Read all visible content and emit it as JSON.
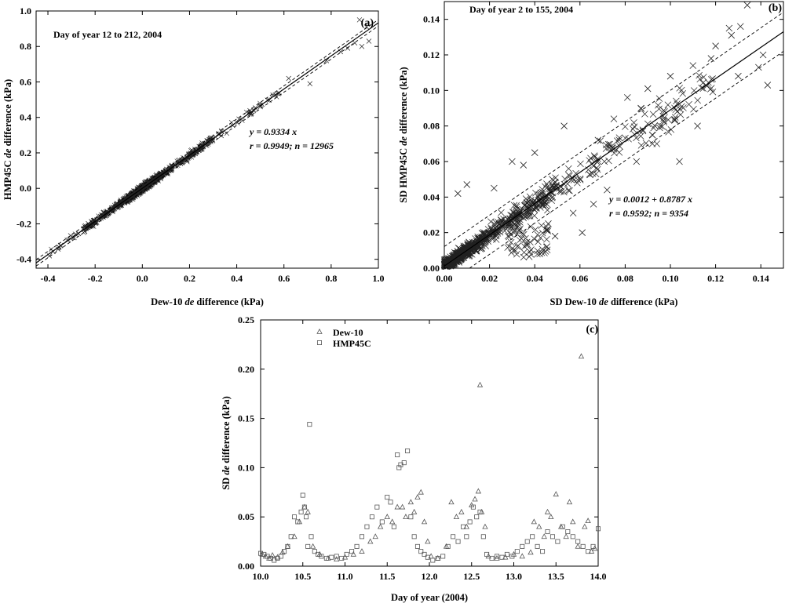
{
  "chart_data": [
    {
      "id": "a",
      "type": "scatter",
      "panel_label": "(a)",
      "title": "Day of year 12 to 212, 2004",
      "xlabel": "Dew-10 de difference (kPa)",
      "xlabel_parts": [
        "Dew-10 ",
        "de",
        " difference (kPa)"
      ],
      "ylabel": "HMP45C de difference (kPa)",
      "ylabel_parts": [
        "HMP45C ",
        "de",
        " difference (kPa)"
      ],
      "xlim": [
        -0.45,
        1.0
      ],
      "ylim": [
        -0.45,
        1.0
      ],
      "xticks": [
        -0.4,
        -0.2,
        0.0,
        0.2,
        0.4,
        0.6,
        0.8,
        1.0
      ],
      "xtick_labels": [
        "-0.4",
        "-0.2",
        "0.0",
        "0.2",
        "0.4",
        "0.6",
        "0.8",
        "1.0"
      ],
      "yticks": [
        -0.4,
        -0.2,
        0.0,
        0.2,
        0.4,
        0.6,
        0.8,
        1.0
      ],
      "ytick_labels": [
        "-0.4",
        "-0.2",
        "0.0",
        "0.2",
        "0.4",
        "0.6",
        "0.8",
        "1.0"
      ],
      "marker": "x",
      "regression": {
        "intercept": 0.0,
        "slope": 0.9334,
        "band": 0.018
      },
      "equation": "y = 0.9334 x",
      "stats": "r = 0.9949; n = 12965",
      "outliers": [
        [
          0.62,
          0.62
        ],
        [
          0.71,
          0.59
        ],
        [
          0.84,
          0.77
        ],
        [
          0.87,
          0.79
        ],
        [
          0.9,
          0.82
        ],
        [
          0.93,
          0.8
        ],
        [
          0.96,
          0.83
        ],
        [
          0.95,
          0.91
        ],
        [
          0.92,
          0.95
        ],
        [
          0.78,
          0.72
        ]
      ]
    },
    {
      "id": "b",
      "type": "scatter",
      "panel_label": "(b)",
      "title": "Day of year 2 to 155, 2004",
      "xlabel": "SD Dew-10 de difference (kPa)",
      "xlabel_parts": [
        "SD Dew-10 ",
        "de",
        " difference (kPa)"
      ],
      "ylabel": "SD HMP45C de difference (kPa)",
      "ylabel_parts": [
        "SD HMP45C ",
        "de",
        " difference (kPa)"
      ],
      "xlim": [
        0.0,
        0.15
      ],
      "ylim": [
        0.0,
        0.15
      ],
      "xticks": [
        0.0,
        0.02,
        0.04,
        0.06,
        0.08,
        0.1,
        0.12,
        0.14
      ],
      "xtick_labels": [
        "0.00",
        "0.02",
        "0.04",
        "0.06",
        "0.08",
        "0.10",
        "0.12",
        "0.14"
      ],
      "yticks": [
        0.0,
        0.02,
        0.04,
        0.06,
        0.08,
        0.1,
        0.12,
        0.14
      ],
      "ytick_labels": [
        "0.00",
        "0.02",
        "0.04",
        "0.06",
        "0.08",
        "0.10",
        "0.12",
        "0.14"
      ],
      "marker": "x",
      "regression": {
        "intercept": 0.0012,
        "slope": 0.8787,
        "band": 0.011
      },
      "equation": "y = 0.0012 + 0.8787 x",
      "stats": "r = 0.9592; n = 9354",
      "outliers": [
        [
          0.134,
          0.148
        ],
        [
          0.131,
          0.136
        ],
        [
          0.126,
          0.135
        ],
        [
          0.12,
          0.125
        ],
        [
          0.11,
          0.114
        ],
        [
          0.1,
          0.108
        ],
        [
          0.09,
          0.101
        ],
        [
          0.097,
          0.083
        ],
        [
          0.092,
          0.075
        ],
        [
          0.087,
          0.09
        ],
        [
          0.081,
          0.096
        ],
        [
          0.075,
          0.084
        ],
        [
          0.068,
          0.072
        ],
        [
          0.066,
          0.036
        ],
        [
          0.057,
          0.031
        ],
        [
          0.053,
          0.08
        ],
        [
          0.049,
          0.018
        ],
        [
          0.046,
          0.025
        ],
        [
          0.04,
          0.065
        ],
        [
          0.035,
          0.058
        ],
        [
          0.01,
          0.047
        ],
        [
          0.006,
          0.042
        ],
        [
          0.022,
          0.045
        ],
        [
          0.03,
          0.06
        ],
        [
          0.104,
          0.06
        ],
        [
          0.141,
          0.12
        ],
        [
          0.143,
          0.103
        ],
        [
          0.13,
          0.108
        ],
        [
          0.112,
          0.08
        ],
        [
          0.085,
          0.06
        ],
        [
          0.072,
          0.044
        ],
        [
          0.061,
          0.02
        ],
        [
          0.139,
          0.113
        ],
        [
          0.118,
          0.118
        ],
        [
          0.127,
          0.131
        ]
      ]
    },
    {
      "id": "c",
      "type": "scatter",
      "panel_label": "(c)",
      "xlabel": "Day of year (2004)",
      "ylabel": "SD de difference (kPa)",
      "ylabel_parts": [
        "SD ",
        "de",
        " difference (kPa)"
      ],
      "xlim": [
        10.0,
        14.0
      ],
      "ylim": [
        0.0,
        0.25
      ],
      "xticks": [
        10.0,
        10.5,
        11.0,
        11.5,
        12.0,
        12.5,
        13.0,
        13.5,
        14.0
      ],
      "xtick_labels": [
        "10.0",
        "10.5",
        "11.0",
        "11.5",
        "12.0",
        "12.5",
        "13.0",
        "13.5",
        "14.0"
      ],
      "yticks": [
        0.0,
        0.05,
        0.1,
        0.15,
        0.2,
        0.25
      ],
      "ytick_labels": [
        "0.00",
        "0.05",
        "0.10",
        "0.15",
        "0.20",
        "0.25"
      ],
      "legend_position": "top-left",
      "series": [
        {
          "name": "Dew-10",
          "marker": "triangle",
          "x": [
            10.02,
            10.06,
            10.1,
            10.14,
            10.2,
            10.26,
            10.32,
            10.4,
            10.46,
            10.52,
            10.56,
            10.62,
            10.7,
            10.8,
            10.9,
            11.0,
            11.1,
            11.2,
            11.3,
            11.36,
            11.42,
            11.5,
            11.56,
            11.62,
            11.68,
            11.72,
            11.78,
            11.82,
            11.86,
            11.9,
            11.94,
            11.98,
            12.02,
            12.1,
            12.2,
            12.26,
            12.32,
            12.38,
            12.44,
            12.5,
            12.54,
            12.58,
            12.6,
            12.62,
            12.66,
            12.7,
            12.8,
            12.9,
            13.0,
            13.1,
            13.2,
            13.24,
            13.3,
            13.36,
            13.4,
            13.44,
            13.5,
            13.56,
            13.62,
            13.66,
            13.7,
            13.76,
            13.8,
            13.84,
            13.88,
            13.92,
            13.96
          ],
          "y": [
            0.012,
            0.01,
            0.008,
            0.011,
            0.009,
            0.014,
            0.02,
            0.03,
            0.045,
            0.06,
            0.055,
            0.02,
            0.012,
            0.008,
            0.007,
            0.009,
            0.012,
            0.015,
            0.025,
            0.03,
            0.04,
            0.05,
            0.045,
            0.06,
            0.06,
            0.05,
            0.065,
            0.055,
            0.07,
            0.075,
            0.045,
            0.025,
            0.01,
            0.008,
            0.02,
            0.065,
            0.05,
            0.055,
            0.04,
            0.062,
            0.068,
            0.076,
            0.184,
            0.055,
            0.04,
            0.01,
            0.008,
            0.009,
            0.012,
            0.01,
            0.014,
            0.045,
            0.04,
            0.03,
            0.055,
            0.05,
            0.073,
            0.04,
            0.03,
            0.065,
            0.045,
            0.02,
            0.213,
            0.04,
            0.046,
            0.015,
            0.018
          ]
        },
        {
          "name": "HMP45C",
          "marker": "square",
          "x": [
            10.0,
            10.04,
            10.08,
            10.12,
            10.16,
            10.2,
            10.24,
            10.28,
            10.32,
            10.36,
            10.4,
            10.44,
            10.48,
            10.5,
            10.52,
            10.54,
            10.56,
            10.58,
            10.6,
            10.64,
            10.68,
            10.72,
            10.78,
            10.84,
            10.9,
            10.96,
            11.02,
            11.08,
            11.14,
            11.2,
            11.26,
            11.32,
            11.38,
            11.44,
            11.5,
            11.54,
            11.58,
            11.62,
            11.64,
            11.66,
            11.7,
            11.74,
            11.78,
            11.82,
            11.86,
            11.9,
            11.94,
            11.98,
            12.04,
            12.1,
            12.16,
            12.22,
            12.28,
            12.34,
            12.4,
            12.44,
            12.48,
            12.52,
            12.56,
            12.6,
            12.64,
            12.68,
            12.74,
            12.8,
            12.86,
            12.92,
            12.98,
            13.04,
            13.1,
            13.16,
            13.22,
            13.28,
            13.34,
            13.4,
            13.46,
            13.52,
            13.58,
            13.64,
            13.7,
            13.76,
            13.82,
            13.88,
            13.94,
            14.0
          ],
          "y": [
            0.013,
            0.012,
            0.01,
            0.008,
            0.006,
            0.008,
            0.01,
            0.015,
            0.02,
            0.03,
            0.05,
            0.045,
            0.055,
            0.072,
            0.06,
            0.05,
            0.02,
            0.144,
            0.03,
            0.015,
            0.012,
            0.01,
            0.008,
            0.009,
            0.01,
            0.008,
            0.012,
            0.015,
            0.02,
            0.03,
            0.04,
            0.05,
            0.06,
            0.045,
            0.07,
            0.065,
            0.04,
            0.113,
            0.1,
            0.103,
            0.105,
            0.117,
            0.05,
            0.03,
            0.02,
            0.015,
            0.012,
            0.009,
            0.006,
            0.008,
            0.01,
            0.02,
            0.03,
            0.025,
            0.04,
            0.03,
            0.045,
            0.06,
            0.05,
            0.055,
            0.03,
            0.012,
            0.008,
            0.01,
            0.009,
            0.012,
            0.01,
            0.015,
            0.02,
            0.025,
            0.03,
            0.02,
            0.015,
            0.035,
            0.03,
            0.025,
            0.04,
            0.035,
            0.03,
            0.025,
            0.02,
            0.015,
            0.02,
            0.038
          ]
        }
      ]
    }
  ]
}
